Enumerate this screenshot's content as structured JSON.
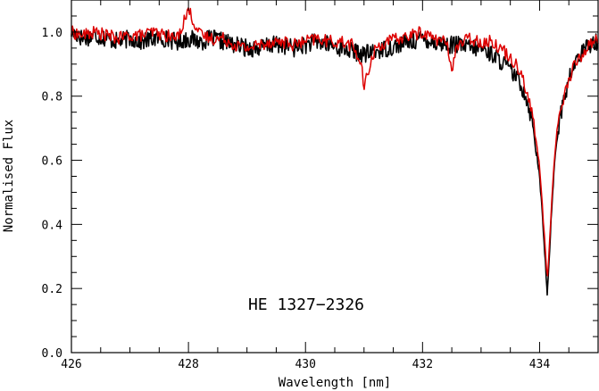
{
  "chart_data": {
    "type": "line",
    "xlabel": "Wavelength [nm]",
    "ylabel": "Normalised Flux",
    "xlim": [
      426,
      435
    ],
    "ylim": [
      0.0,
      1.1
    ],
    "x_ticks_major": [
      426,
      428,
      430,
      432,
      434
    ],
    "x_tick_labels": [
      "426",
      "428",
      "430",
      "432",
      "434"
    ],
    "y_ticks_major": [
      0.0,
      0.2,
      0.4,
      0.6,
      0.8,
      1.0
    ],
    "y_tick_labels": [
      "0.0",
      "0.2",
      "0.4",
      "0.6",
      "0.8",
      "1.0"
    ],
    "annotation": "HE 1327−2326",
    "grid": false,
    "series": [
      {
        "color": "#000000",
        "line_min": {
          "x": 434.13,
          "y": 0.18
        },
        "x": [
          426.0,
          426.2,
          426.4,
          426.6,
          426.8,
          427.0,
          427.2,
          427.4,
          427.6,
          427.8,
          428.0,
          428.2,
          428.4,
          428.6,
          428.8,
          429.0,
          429.2,
          429.4,
          429.6,
          429.8,
          430.0,
          430.2,
          430.4,
          430.6,
          430.8,
          431.0,
          431.2,
          431.4,
          431.6,
          431.8,
          432.0,
          432.2,
          432.4,
          432.6,
          432.8,
          433.0,
          433.2,
          433.4,
          433.6,
          433.7,
          433.8,
          433.9,
          434.0,
          434.05,
          434.1,
          434.13,
          434.16,
          434.2,
          434.25,
          434.3,
          434.4,
          434.5,
          434.6,
          434.7,
          434.8,
          434.9,
          435.0
        ],
        "y": [
          1.0,
          0.98,
          0.99,
          0.98,
          0.97,
          0.98,
          0.97,
          0.98,
          0.98,
          0.97,
          0.98,
          0.97,
          0.98,
          0.97,
          0.96,
          0.95,
          0.95,
          0.96,
          0.96,
          0.95,
          0.96,
          0.97,
          0.96,
          0.95,
          0.94,
          0.93,
          0.94,
          0.95,
          0.96,
          0.97,
          0.98,
          0.97,
          0.96,
          0.96,
          0.95,
          0.95,
          0.93,
          0.9,
          0.86,
          0.83,
          0.78,
          0.7,
          0.55,
          0.42,
          0.28,
          0.18,
          0.27,
          0.43,
          0.58,
          0.68,
          0.78,
          0.85,
          0.9,
          0.93,
          0.95,
          0.97,
          0.97
        ]
      },
      {
        "color": "#dd0000",
        "x": [
          426.0,
          426.2,
          426.4,
          426.6,
          426.8,
          427.0,
          427.2,
          427.4,
          427.6,
          427.8,
          428.0,
          428.2,
          428.4,
          428.6,
          428.8,
          429.0,
          429.2,
          429.4,
          429.6,
          429.8,
          430.0,
          430.2,
          430.4,
          430.6,
          430.8,
          430.95,
          431.0,
          431.1,
          431.2,
          431.4,
          431.6,
          431.8,
          432.0,
          432.2,
          432.4,
          432.5,
          432.6,
          432.8,
          433.0,
          433.2,
          433.4,
          433.6,
          433.7,
          433.8,
          433.9,
          434.0,
          434.05,
          434.1,
          434.13,
          434.16,
          434.2,
          434.25,
          434.3,
          434.4,
          434.5,
          434.6,
          434.7,
          434.8,
          434.9,
          435.0
        ],
        "y": [
          1.0,
          0.99,
          1.0,
          0.99,
          0.98,
          0.99,
          0.99,
          1.0,
          0.99,
          0.98,
          1.07,
          0.99,
          0.98,
          0.98,
          0.96,
          0.95,
          0.96,
          0.97,
          0.97,
          0.96,
          0.97,
          0.98,
          0.97,
          0.97,
          0.96,
          0.9,
          0.82,
          0.9,
          0.95,
          0.97,
          0.98,
          0.99,
          1.0,
          0.98,
          0.97,
          0.89,
          0.96,
          0.98,
          0.97,
          0.97,
          0.94,
          0.9,
          0.87,
          0.8,
          0.72,
          0.58,
          0.45,
          0.32,
          0.22,
          0.3,
          0.45,
          0.6,
          0.7,
          0.79,
          0.85,
          0.9,
          0.92,
          0.95,
          0.97,
          0.98
        ]
      }
    ]
  }
}
